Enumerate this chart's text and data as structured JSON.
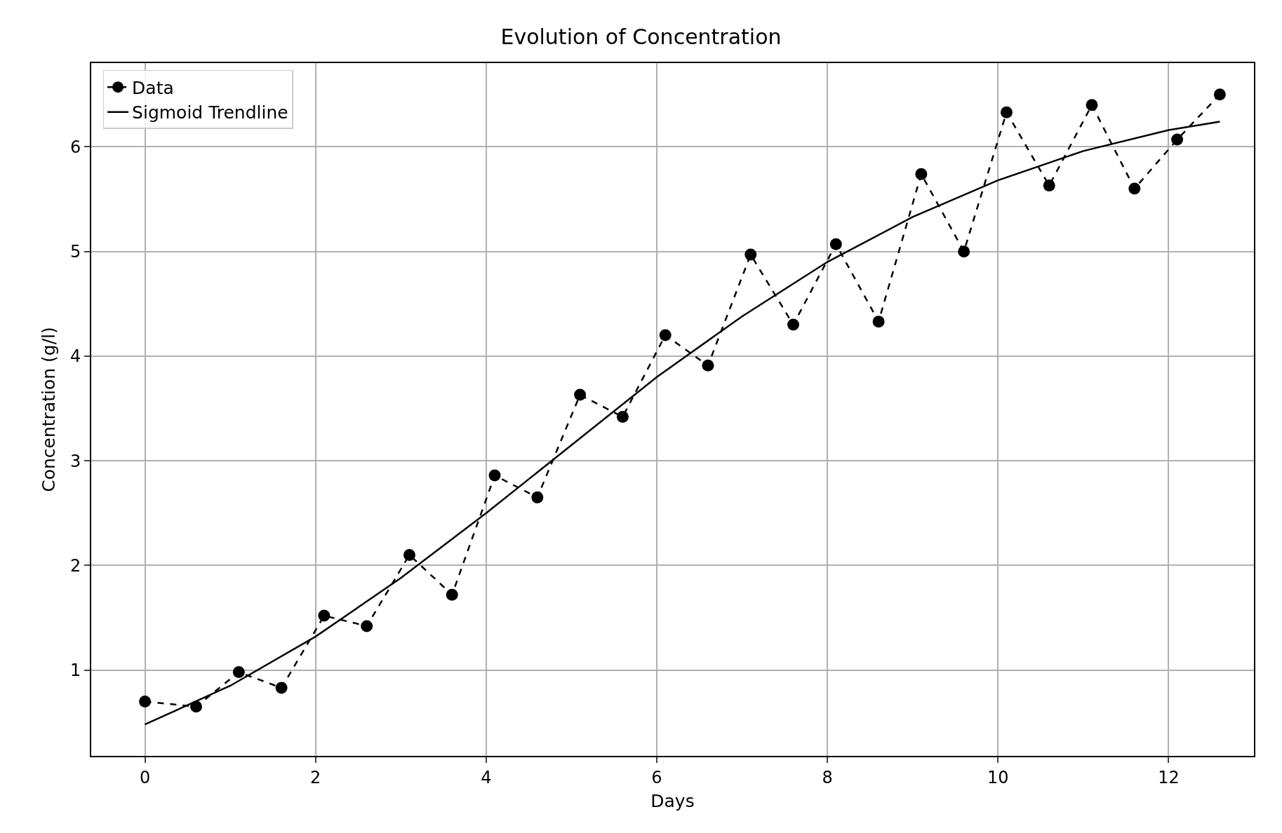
{
  "chart_data": {
    "type": "line",
    "title": "Evolution of Concentration",
    "xlabel": "Days",
    "ylabel": "Concentration (g/l)",
    "xlim": [
      -0.63,
      13.0
    ],
    "xticks": [
      0,
      2,
      4,
      6,
      8,
      10,
      12
    ],
    "ylim": [
      0.18,
      6.8
    ],
    "yticks": [
      1,
      2,
      3,
      4,
      5,
      6
    ],
    "grid": true,
    "legend": "top left",
    "series": [
      {
        "name": "Data",
        "color": "#000000",
        "marker": "circle",
        "line_style": "dashed",
        "x": [
          0,
          0.6,
          1.1,
          1.6,
          2.1,
          2.6,
          3.1,
          3.6,
          4.1,
          4.6,
          5.1,
          5.6,
          6.1,
          6.6,
          7.1,
          7.6,
          8.1,
          8.6,
          9.1,
          9.6,
          10.1,
          10.6,
          11.1,
          11.6,
          12.1,
          12.6
        ],
        "values": [
          0.7,
          0.65,
          0.98,
          0.83,
          1.52,
          1.42,
          2.1,
          1.72,
          2.86,
          2.65,
          3.63,
          3.42,
          4.2,
          3.91,
          4.97,
          4.3,
          5.07,
          4.33,
          5.74,
          5.0,
          6.33,
          5.63,
          6.4,
          5.6,
          6.07,
          6.5
        ]
      },
      {
        "name": "Sigmoid Trendline",
        "type": "line",
        "color": "#000000",
        "marker": "none",
        "line_style": "solid",
        "x": [
          0,
          1,
          2,
          3,
          4,
          5,
          6,
          7,
          8,
          9,
          10,
          11,
          12,
          12.6
        ],
        "values": [
          0.48,
          0.85,
          1.32,
          1.88,
          2.5,
          3.15,
          3.8,
          4.38,
          4.9,
          5.33,
          5.68,
          5.96,
          6.16,
          6.24
        ]
      }
    ]
  }
}
